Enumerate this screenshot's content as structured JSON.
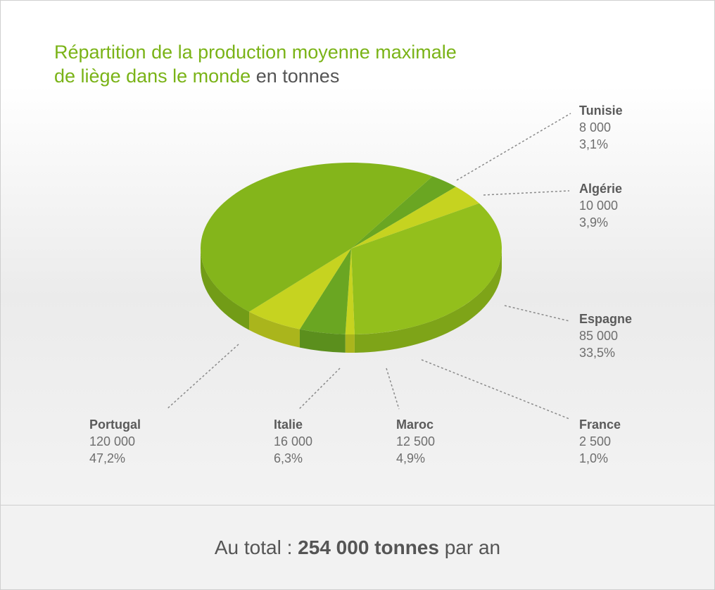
{
  "chart_data": {
    "type": "pie",
    "title_line1": "Répartition de la production moyenne maximale",
    "title_line2_main": "de liège dans le monde",
    "title_unit": "en tonnes",
    "slices": [
      {
        "name": "Tunisie",
        "value_label": "8 000",
        "pct_label": "3,1%",
        "value": 8000,
        "pct": 3.1,
        "color": "#6aa622"
      },
      {
        "name": "Algérie",
        "value_label": "10 000",
        "pct_label": "3,9%",
        "value": 10000,
        "pct": 3.9,
        "color": "#c6d320"
      },
      {
        "name": "Espagne",
        "value_label": "85 000",
        "pct_label": "33,5%",
        "value": 85000,
        "pct": 33.5,
        "color": "#93bf1c"
      },
      {
        "name": "France",
        "value_label": "2 500",
        "pct_label": "1,0%",
        "value": 2500,
        "pct": 1.0,
        "color": "#c6d320"
      },
      {
        "name": "Maroc",
        "value_label": "12 500",
        "pct_label": "4,9%",
        "value": 12500,
        "pct": 4.9,
        "color": "#6aa622"
      },
      {
        "name": "Italie",
        "value_label": "16 000",
        "pct_label": "6,3%",
        "value": 16000,
        "pct": 6.3,
        "color": "#c6d320"
      },
      {
        "name": "Portugal",
        "value_label": "120 000",
        "pct_label": "47,2%",
        "value": 120000,
        "pct": 47.2,
        "color": "#84b51b"
      }
    ]
  },
  "footer": {
    "prefix": "Au total : ",
    "total": "254 000 tonnes",
    "suffix": " par an"
  }
}
